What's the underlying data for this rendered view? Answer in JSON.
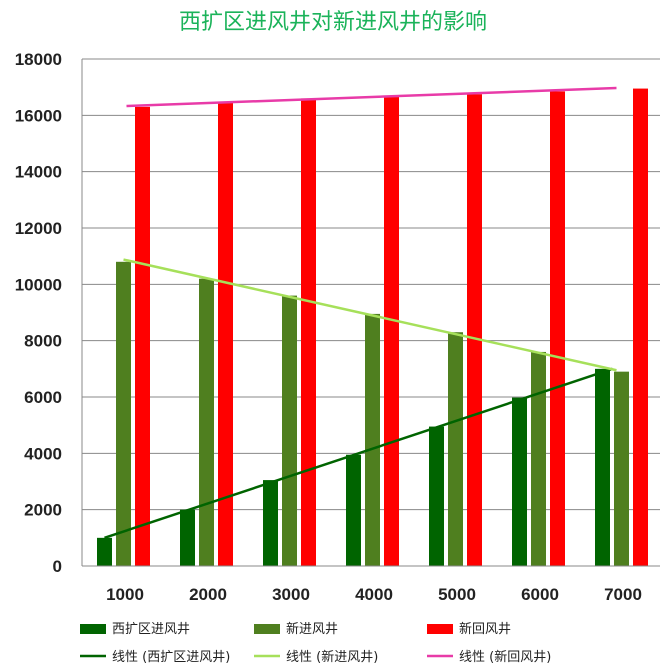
{
  "chart_data": {
    "type": "bar",
    "title": "西扩区进风井对新进风井的影响",
    "xlabel": "",
    "ylabel": "",
    "categories": [
      "1000",
      "2000",
      "3000",
      "4000",
      "5000",
      "6000",
      "7000"
    ],
    "ylim": [
      0,
      18000
    ],
    "yticks": [
      "0",
      "2000",
      "4000",
      "6000",
      "8000",
      "10000",
      "12000",
      "14000",
      "16000",
      "18000"
    ],
    "grid": "horizontal",
    "legend_position": "bottom",
    "series": [
      {
        "name": "西扩区进风井",
        "color": "#006400",
        "values": [
          1000,
          2000,
          3050,
          3950,
          4950,
          5980,
          7000
        ]
      },
      {
        "name": "新进风井",
        "color": "#4F7F1F",
        "values": [
          10800,
          10200,
          9600,
          8950,
          8300,
          7600,
          6900
        ]
      },
      {
        "name": "新回风井",
        "color": "#FF0000",
        "values": [
          16300,
          16450,
          16600,
          16650,
          16750,
          16850,
          16950
        ]
      }
    ],
    "trendlines": [
      {
        "name": "线性 (西扩区进风井)",
        "color": "#006400",
        "start": 1000,
        "end": 7000
      },
      {
        "name": "线性 (新进风井)",
        "color": "#A6E05A",
        "start": 10880,
        "end": 6950
      },
      {
        "name": "线性 (新回风井)",
        "color": "#E83BA8",
        "start": 16330,
        "end": 16970
      }
    ],
    "title_color": "#1BB35A"
  }
}
